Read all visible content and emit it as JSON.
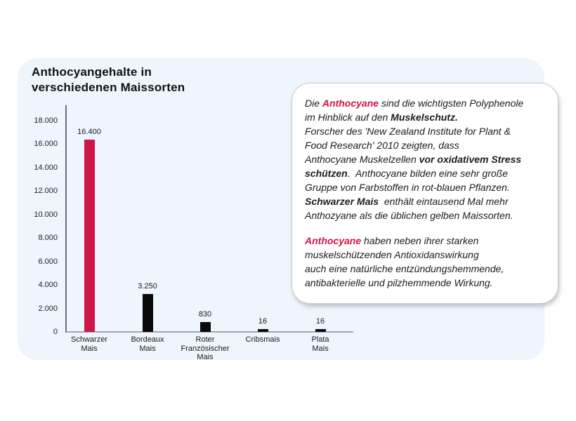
{
  "page": {
    "background": "#ffffff"
  },
  "panel": {
    "background": "#eef5fc"
  },
  "chart_data": {
    "type": "bar",
    "title": "Anthocyangehalte in\nverschiedenen Maissorten",
    "categories": [
      "Schwarzer\nMais",
      "Bordeaux\nMais",
      "Roter\nFranzösischer\nMais",
      "Cribsmais",
      "Plata\nMais"
    ],
    "slugs": [
      "schwarzer-mais",
      "bordeaux-mais",
      "roter-franzoesischer-mais",
      "cribsmais",
      "plata-mais"
    ],
    "values": [
      16400,
      3250,
      830,
      16,
      16
    ],
    "value_labels": [
      "16.400",
      "3.250",
      "830",
      "16",
      "16"
    ],
    "bar_colors": [
      "#d01648",
      "#0a0a0a",
      "#0a0a0a",
      "#0a0a0a",
      "#0a0a0a"
    ],
    "xlabel": "",
    "ylabel": "",
    "ylim": [
      0,
      18000
    ],
    "ytick_step": 2000,
    "ytick_labels": [
      "18.000",
      "16.000",
      "14.000",
      "12.000",
      "10.000",
      "8.000",
      "6.000",
      "4.000",
      "2.000",
      "0"
    ],
    "grid": false,
    "legend": "none",
    "axis_color": "#6f6f6f",
    "baseline_color": "#a6a6a6"
  },
  "infobox": {
    "background": "#ffffff",
    "border_color": "#c9c9c9",
    "accent_color": "#d01648",
    "paragraphs": [
      {
        "segments": [
          {
            "style": "normal",
            "text": "Die "
          },
          {
            "style": "accent",
            "text": "Anthocyane"
          },
          {
            "style": "normal",
            "text": " sind die wichtigsten Polyphenole\nim Hinblick auf den "
          },
          {
            "style": "bold",
            "text": "Muskelschutz."
          },
          {
            "style": "normal",
            "text": "\nForscher des 'New Zealand Institute for Plant &\nFood Research' 2010 zeigten, dass\nAnthocyane Muskelzellen "
          },
          {
            "style": "bold",
            "text": "vor oxidativem Stress\nschützen"
          },
          {
            "style": "normal",
            "text": ".  Anthocyane bilden eine sehr große\nGruppe von Farbstoffen in rot-blauen Pflanzen.\n"
          },
          {
            "style": "bold",
            "text": "Schwarzer Mais"
          },
          {
            "style": "normal",
            "text": "  enthält eintausend Mal mehr\nAnthozyane als die üblichen gelben Maissorten."
          }
        ]
      },
      {
        "segments": [
          {
            "style": "accent",
            "text": "Anthocyane"
          },
          {
            "style": "normal",
            "text": " haben neben ihrer starken\nmuskelschützenden Antioxidanswirkung\nauch eine natürliche entzündungshemmende,\nantibakterielle und pilzhemmende Wirkung."
          }
        ]
      }
    ]
  }
}
